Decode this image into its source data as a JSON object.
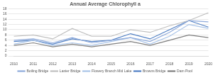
{
  "chart_data": {
    "type": "line",
    "title": "Annual Average Chlorophyll a",
    "categories": [
      "2010",
      "2011",
      "2012",
      "2013",
      "2014",
      "2015",
      "2016",
      "2017",
      "2018",
      "2019",
      "2020"
    ],
    "series": [
      {
        "name": "Boiling Bridge",
        "color": "#8eaadb",
        "values": [
          6,
          6.5,
          5,
          7,
          5,
          6,
          7,
          5.5,
          9,
          13.5,
          13
        ]
      },
      {
        "name": "Lanier Bridge",
        "color": "#bfbfbf",
        "values": [
          7.5,
          8,
          6.5,
          10.5,
          7.5,
          7.5,
          10,
          9,
          11.5,
          13.5,
          16.5
        ]
      },
      {
        "name": "Flowery Branch Mid Lake",
        "color": "#a9c4e8",
        "values": [
          4.5,
          6,
          4,
          5,
          4,
          5.5,
          7,
          4.5,
          7.5,
          12,
          10.5
        ]
      },
      {
        "name": "Browns Bridge",
        "color": "#4f7fc4",
        "values": [
          5.5,
          6,
          4.5,
          6.5,
          5.5,
          6,
          8.5,
          6.5,
          10,
          13.5,
          11
        ]
      },
      {
        "name": "Dam Pool",
        "color": "#7f7f7f",
        "values": [
          4,
          5,
          3.5,
          4.5,
          3.5,
          4.5,
          5.5,
          4,
          6,
          8,
          7
        ]
      }
    ],
    "ylim": [
      0,
      18
    ],
    "yticks": [
      0,
      2,
      4,
      6,
      8,
      10,
      12,
      14,
      16,
      18
    ],
    "grid": true,
    "legend": "bottom"
  }
}
